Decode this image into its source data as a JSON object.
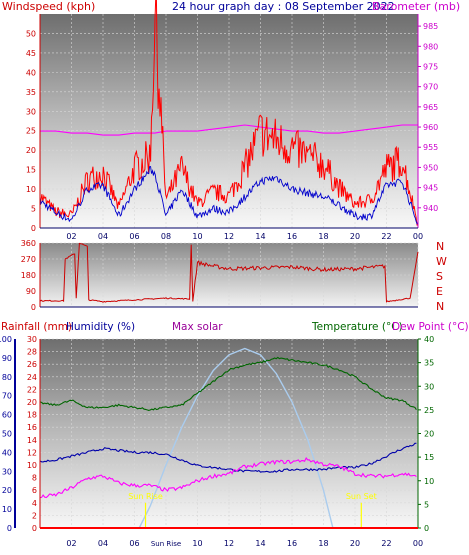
{
  "header": {
    "windspeed_label": "Windspeed (kph)",
    "title": "24 hour graph day : 08 September 2022",
    "barometer_label": "Barometer (mb)"
  },
  "lower_header": {
    "rainfall_label": "Rainfall (mm)",
    "humidity_label": "Humidity (%)",
    "solar_label": "Max solar",
    "temperature_label": "Temperature (°C)",
    "dewpoint_label": "Dew Point (°C)"
  },
  "colors": {
    "wind": "#ff0000",
    "wind_avg": "#0000cc",
    "barometer": "#ff00ff",
    "direction": "#cc0000",
    "temperature": "#006600",
    "humidity": "#0000aa",
    "dewpoint": "#ff00ff",
    "solar": "#aaccee",
    "sun_marker": "#ffff00"
  },
  "chart_data": [
    {
      "type": "line",
      "name": "wind-barometer",
      "x_ticks": [
        "02",
        "04",
        "06",
        "08",
        "10",
        "12",
        "14",
        "16",
        "18",
        "20",
        "22",
        "00"
      ],
      "y_left_ticks": [
        "0",
        "5",
        "10",
        "15",
        "20",
        "25",
        "30",
        "35",
        "40",
        "45",
        "50"
      ],
      "y_left_range": [
        0,
        55
      ],
      "y_right_ticks": [
        "940",
        "945",
        "950",
        "955",
        "960",
        "965",
        "970",
        "975",
        "980",
        "985"
      ],
      "y_right_range": [
        935,
        988
      ],
      "hours": [
        0,
        1,
        2,
        3,
        4,
        5,
        6,
        7,
        7.3,
        8,
        9,
        10,
        11,
        12,
        13,
        14,
        15,
        16,
        17,
        18,
        19,
        20,
        21,
        22,
        23,
        24
      ],
      "gust": [
        8,
        4,
        3,
        12,
        14,
        5,
        15,
        18,
        54,
        7,
        15,
        6,
        9,
        8,
        15,
        24,
        22,
        20,
        18,
        16,
        10,
        6,
        7,
        15,
        17,
        1
      ],
      "avg": [
        7,
        4,
        2,
        10,
        11,
        3,
        10,
        15,
        14,
        3,
        10,
        3,
        5,
        4,
        8,
        12,
        13,
        10,
        9,
        8,
        6,
        3,
        3,
        11,
        12,
        1
      ],
      "barometer": [
        959,
        959,
        958.5,
        958.5,
        958,
        958,
        958.5,
        958.5,
        958.5,
        959,
        959,
        959,
        959.5,
        960,
        960.5,
        960,
        959.5,
        959,
        959,
        958.5,
        958.5,
        959,
        959.5,
        960,
        960.5,
        960.5
      ]
    },
    {
      "type": "line",
      "name": "wind-direction",
      "right_labels": [
        "N",
        "W",
        "S",
        "E",
        "N"
      ],
      "y_ticks": [
        "0",
        "90",
        "180",
        "270",
        "360"
      ],
      "y_range": [
        0,
        360
      ],
      "hours": [
        0,
        1.5,
        1.6,
        2.2,
        2.3,
        2.5,
        3,
        3.1,
        4,
        6,
        8,
        9.5,
        9.6,
        9.7,
        10,
        11,
        12,
        14,
        16,
        18,
        20,
        21.9,
        22,
        23.5,
        24
      ],
      "degrees": [
        35,
        35,
        270,
        300,
        50,
        360,
        340,
        40,
        30,
        40,
        50,
        45,
        350,
        40,
        250,
        230,
        215,
        220,
        225,
        210,
        215,
        230,
        30,
        50,
        310
      ]
    },
    {
      "type": "line",
      "name": "temperature-humidity",
      "left_outer_ticks": [
        "0",
        "10",
        "20",
        "30",
        "40",
        "50",
        "60",
        "70",
        "80",
        "90",
        "100"
      ],
      "left_outer_range": [
        0,
        100
      ],
      "left_inner_ticks": [
        "0",
        "2",
        "4",
        "6",
        "8",
        "10",
        "12",
        "14",
        "16",
        "18",
        "20",
        "22",
        "24",
        "26",
        "28",
        "30"
      ],
      "left_inner_range": [
        0,
        30
      ],
      "right_ticks": [
        "0",
        "5",
        "10",
        "15",
        "20",
        "25",
        "30",
        "35",
        "40"
      ],
      "right_range": [
        0,
        40
      ],
      "x_ticks": [
        "02",
        "04",
        "06",
        "08",
        "10",
        "12",
        "14",
        "16",
        "18",
        "20",
        "22",
        "00"
      ],
      "hours": [
        0,
        1,
        2,
        3,
        4,
        5,
        6,
        7,
        8,
        9,
        10,
        11,
        12,
        13,
        14,
        15,
        16,
        17,
        18,
        19,
        20,
        21,
        22,
        23,
        24
      ],
      "temperature": [
        26.5,
        26,
        27,
        25.5,
        25.5,
        26,
        25.5,
        25,
        25.5,
        26,
        28.5,
        31,
        33.5,
        34.5,
        35,
        36,
        35.5,
        35,
        34.5,
        33.5,
        32,
        29.5,
        27.5,
        27,
        25
      ],
      "humidity": [
        35,
        36,
        38,
        40,
        42,
        41,
        40,
        40,
        39,
        36,
        33,
        32,
        31,
        30,
        30,
        30,
        31,
        31,
        31,
        32,
        32,
        34,
        38,
        42,
        45
      ],
      "dewpoint": [
        6.5,
        7,
        8.5,
        10.5,
        11,
        9.5,
        9,
        9,
        8,
        8.5,
        10,
        11,
        11.5,
        13,
        13.5,
        14,
        14,
        14.5,
        13.5,
        13,
        11.5,
        11,
        11,
        11.5,
        11
      ],
      "solar_hours": [
        6.3,
        7,
        8,
        9,
        10,
        11,
        12,
        13,
        14,
        15,
        16,
        17,
        18,
        18.6
      ],
      "solar": [
        0,
        3.5,
        10,
        16,
        21,
        25,
        27.5,
        28.5,
        27.5,
        24.5,
        20,
        14,
        6,
        0
      ],
      "sunrise_label": "Sun Rise",
      "sunset_label": "Sun Set",
      "sunrise_hour": 6.7,
      "sunset_hour": 20.4,
      "sunrise_axis_label": "Sun Rise"
    }
  ]
}
